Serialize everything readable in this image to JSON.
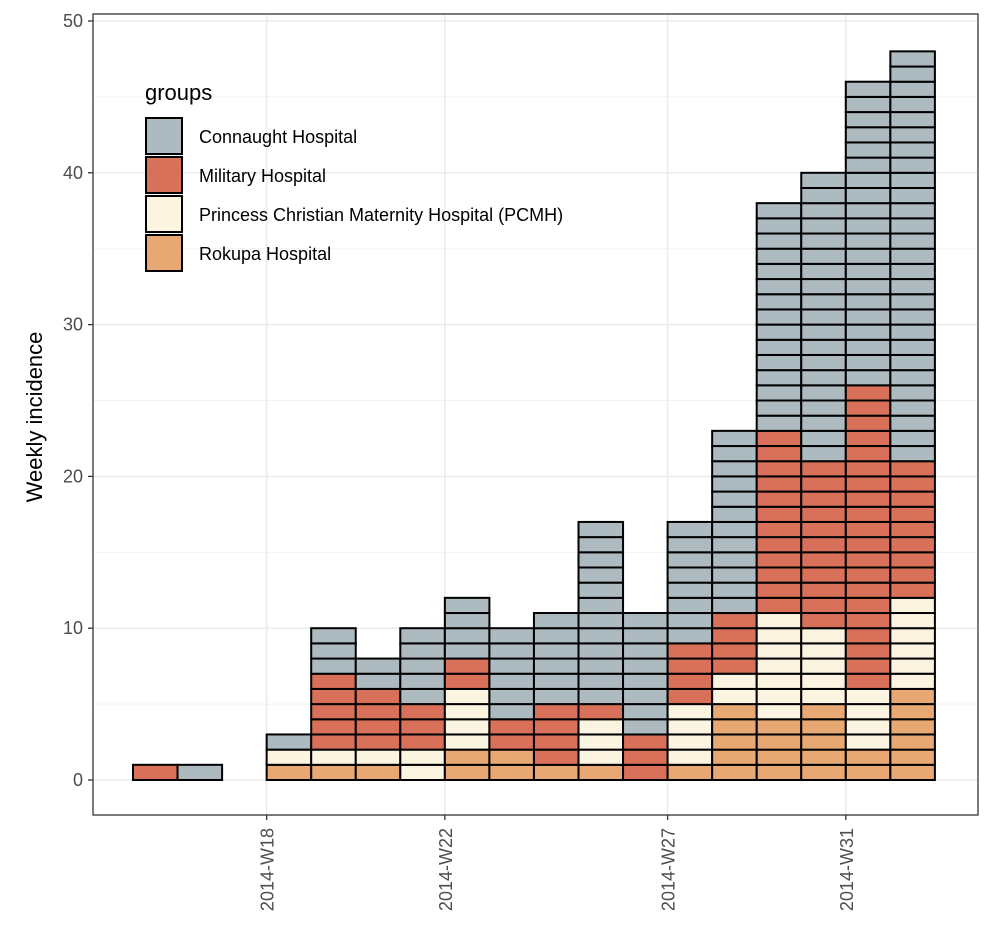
{
  "chart_data": {
    "type": "bar",
    "stacked": true,
    "title": "",
    "xlabel": "",
    "ylabel": "Weekly incidence",
    "ylim": [
      0,
      50
    ],
    "y_ticks": [
      0,
      10,
      20,
      30,
      40,
      50
    ],
    "x_tick_labels": [
      "2014-W18",
      "2014-W22",
      "2014-W27",
      "2014-W31"
    ],
    "grid": true,
    "legend": {
      "title": "groups",
      "position": "top-left"
    },
    "categories": [
      "2014-W15",
      "2014-W16",
      "2014-W17",
      "2014-W18",
      "2014-W19",
      "2014-W20",
      "2014-W21",
      "2014-W22",
      "2014-W23",
      "2014-W24",
      "2014-W25",
      "2014-W26",
      "2014-W27",
      "2014-W28",
      "2014-W29",
      "2014-W30",
      "2014-W31",
      "2014-W32"
    ],
    "series": [
      {
        "name": "Rokupa Hospital",
        "color": "#E8A874",
        "values": [
          0,
          0,
          0,
          1,
          1,
          1,
          0,
          2,
          2,
          1,
          1,
          0,
          1,
          5,
          4,
          5,
          2,
          6
        ]
      },
      {
        "name": "Princess Christian Maternity Hospital (PCMH)",
        "color": "#FBF4E0",
        "values": [
          0,
          0,
          0,
          1,
          1,
          1,
          2,
          4,
          0,
          0,
          3,
          0,
          4,
          2,
          7,
          5,
          4,
          6
        ]
      },
      {
        "name": "Military Hospital",
        "color": "#D9705A",
        "values": [
          1,
          0,
          0,
          0,
          5,
          4,
          3,
          2,
          2,
          4,
          1,
          3,
          4,
          4,
          12,
          11,
          20,
          9
        ]
      },
      {
        "name": "Connaught Hospital",
        "color": "#ADBAC0",
        "values": [
          0,
          1,
          0,
          1,
          3,
          2,
          5,
          4,
          6,
          6,
          12,
          8,
          8,
          12,
          15,
          19,
          20,
          27
        ]
      }
    ],
    "legend_order": [
      "Connaught Hospital",
      "Military Hospital",
      "Princess Christian Maternity Hospital (PCMH)",
      "Rokupa Hospital"
    ]
  }
}
